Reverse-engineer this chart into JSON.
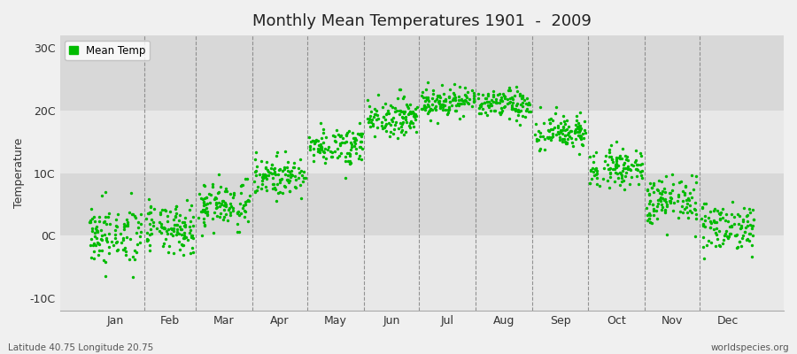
{
  "title": "Monthly Mean Temperatures 1901  -  2009",
  "ylabel": "Temperature",
  "xlabel_months": [
    "Jan",
    "Feb",
    "Mar",
    "Apr",
    "May",
    "Jun",
    "Jul",
    "Aug",
    "Sep",
    "Oct",
    "Nov",
    "Dec"
  ],
  "yticks": [
    -10,
    0,
    10,
    20,
    30
  ],
  "ytick_labels": [
    "-10C",
    "0C",
    "10C",
    "20C",
    "30C"
  ],
  "ylim": [
    -12,
    32
  ],
  "xlim": [
    -15,
    380
  ],
  "legend_label": "Mean Temp",
  "dot_color": "#00bb00",
  "dot_size": 6,
  "bg_color": "#f0f0f0",
  "band_colors": [
    "#e8e8e8",
    "#d8d8d8"
  ],
  "footer_left": "Latitude 40.75 Longitude 20.75",
  "footer_right": "worldspecies.org",
  "mean_monthly_temps": [
    0.0,
    1.0,
    5.0,
    9.5,
    14.5,
    19.0,
    21.5,
    21.0,
    16.5,
    11.0,
    5.5,
    1.5
  ],
  "std_monthly_temps": [
    2.5,
    2.0,
    2.0,
    1.5,
    1.5,
    1.5,
    1.2,
    1.2,
    1.5,
    1.5,
    2.0,
    2.0
  ],
  "n_years": 109,
  "seed": 42
}
